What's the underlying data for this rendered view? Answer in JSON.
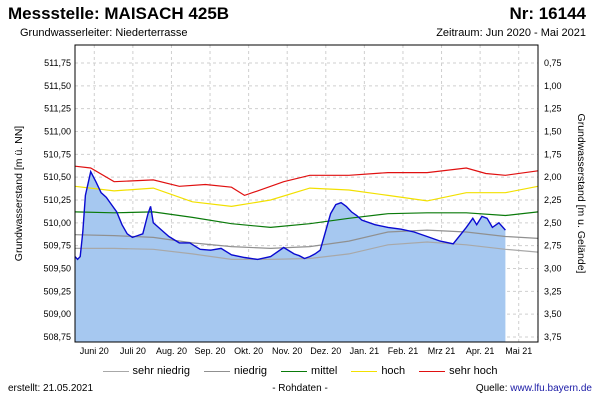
{
  "header": {
    "station_label": "Messstelle: MAISACH 425B",
    "number_label": "Nr: 16144",
    "aquifer_label": "Grundwasserleiter:   Niederterrasse",
    "period_label": "Zeitraum: Jun 2020 - Mai 2021"
  },
  "footer": {
    "created_label": "erstellt:  21.05.2021",
    "mode_label": "- Rohdaten -",
    "source_prefix": "Quelle: ",
    "source_link": "www.lfu.bayern.de"
  },
  "colors": {
    "fill": "#a6c8f0",
    "measured": "#0a0ad0",
    "sehr_niedrig": "#a8a8a8",
    "niedrig": "#909090",
    "mittel": "#0a7a0a",
    "hoch": "#f2e000",
    "sehr_hoch": "#e01010",
    "grid": "#cfcfcf"
  },
  "chart_data": {
    "type": "area",
    "ylabel": "Grundwasserstand [m ü. NN]",
    "y2label": "Grundwasserstand [m u. Gelände]",
    "ylim": [
      508.75,
      511.9
    ],
    "yticks": [
      "511,75",
      "511,50",
      "511,25",
      "511,00",
      "510,75",
      "510,50",
      "510,25",
      "510,00",
      "509,75",
      "509,50",
      "509,25",
      "509,00",
      "508,75"
    ],
    "y2ticks": [
      "0,75",
      "1,00",
      "1,25",
      "1,50",
      "1,75",
      "2,00",
      "2,25",
      "2,50",
      "2,75",
      "3,00",
      "3,25",
      "3,50",
      "3,75"
    ],
    "month_labels": [
      "Juni 20",
      "Juli 20",
      "Aug. 20",
      "Sep. 20",
      "Okt. 20",
      "Nov. 20",
      "Dez. 20",
      "Jan. 21",
      "Feb. 21",
      "Mrz 21",
      "Apr. 21",
      "Mai 21"
    ],
    "x_domain_days": [
      0,
      355
    ],
    "grid": true,
    "legend_placement": "bottom",
    "series": [
      {
        "name": "sehr niedrig",
        "key": "sehr_niedrig",
        "x": [
          0,
          30,
          60,
          90,
          120,
          150,
          180,
          210,
          240,
          270,
          300,
          330,
          355
        ],
        "y": [
          509.72,
          509.72,
          509.71,
          509.66,
          509.6,
          509.6,
          509.61,
          509.66,
          509.76,
          509.79,
          509.76,
          509.71,
          509.68
        ]
      },
      {
        "name": "niedrig",
        "key": "niedrig",
        "x": [
          0,
          30,
          60,
          90,
          120,
          150,
          180,
          210,
          240,
          270,
          300,
          330,
          355
        ],
        "y": [
          509.87,
          509.86,
          509.84,
          509.78,
          509.74,
          509.72,
          509.74,
          509.8,
          509.9,
          509.92,
          509.9,
          509.85,
          509.83
        ]
      },
      {
        "name": "mittel",
        "key": "mittel",
        "x": [
          0,
          30,
          60,
          90,
          120,
          150,
          180,
          210,
          240,
          270,
          300,
          330,
          355
        ],
        "y": [
          510.12,
          510.11,
          510.12,
          510.06,
          509.99,
          509.95,
          509.99,
          510.05,
          510.1,
          510.11,
          510.11,
          510.08,
          510.12
        ]
      },
      {
        "name": "hoch",
        "key": "hoch",
        "x": [
          0,
          30,
          60,
          90,
          120,
          150,
          180,
          210,
          240,
          270,
          300,
          330,
          355
        ],
        "y": [
          510.4,
          510.35,
          510.38,
          510.23,
          510.18,
          510.25,
          510.38,
          510.36,
          510.3,
          510.24,
          510.33,
          510.33,
          510.4
        ]
      },
      {
        "name": "sehr hoch",
        "key": "sehr_hoch",
        "x": [
          0,
          12,
          30,
          60,
          80,
          100,
          120,
          130,
          140,
          160,
          180,
          210,
          240,
          270,
          300,
          315,
          330,
          355
        ],
        "y": [
          510.62,
          510.6,
          510.45,
          510.47,
          510.4,
          510.42,
          510.39,
          510.3,
          510.35,
          510.45,
          510.52,
          510.52,
          510.55,
          510.55,
          510.6,
          510.54,
          510.52,
          510.57
        ]
      },
      {
        "name": "Messwerte",
        "key": "measured",
        "x": [
          0,
          2,
          4,
          6,
          8,
          12,
          16,
          20,
          24,
          28,
          32,
          36,
          40,
          44,
          48,
          52,
          56,
          58,
          60,
          64,
          68,
          72,
          80,
          88,
          96,
          104,
          112,
          120,
          130,
          140,
          150,
          160,
          168,
          172,
          176,
          180,
          184,
          188,
          192,
          196,
          200,
          204,
          208,
          212,
          216,
          220,
          230,
          240,
          250,
          260,
          270,
          280,
          290,
          300,
          305,
          308,
          312,
          316,
          320,
          325,
          330
        ],
        "y": [
          509.63,
          509.6,
          509.63,
          509.9,
          510.3,
          510.56,
          510.45,
          510.33,
          510.28,
          510.2,
          510.12,
          509.98,
          509.88,
          509.84,
          509.86,
          509.88,
          510.1,
          510.18,
          510.0,
          509.95,
          509.9,
          509.85,
          509.78,
          509.78,
          509.71,
          509.7,
          509.72,
          509.65,
          509.62,
          509.6,
          509.63,
          509.73,
          509.66,
          509.64,
          509.61,
          509.63,
          509.66,
          509.7,
          509.9,
          510.1,
          510.2,
          510.22,
          510.18,
          510.12,
          510.08,
          510.03,
          509.98,
          509.95,
          509.93,
          509.9,
          509.85,
          509.8,
          509.77,
          509.95,
          510.05,
          509.98,
          510.07,
          510.05,
          509.95,
          510.0,
          509.92
        ]
      }
    ]
  }
}
